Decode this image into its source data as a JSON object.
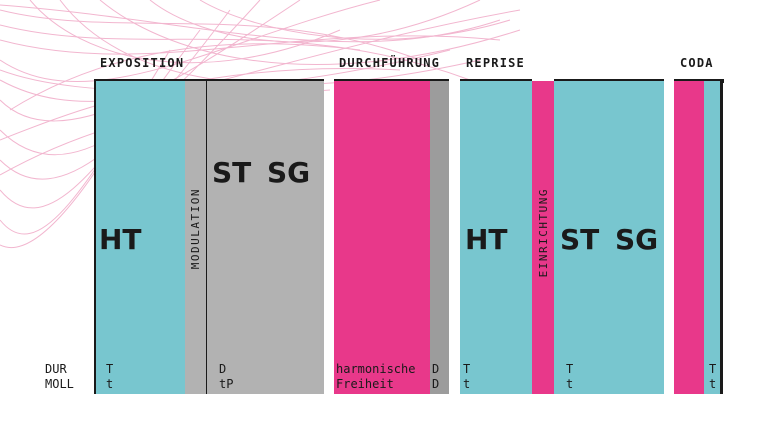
{
  "sections": {
    "exposition": "EXPOSITION",
    "durchfuehrung": "DURCHFÜHRUNG",
    "reprise": "REPRISE",
    "coda": "CODA"
  },
  "blocks": {
    "ht1": "HT",
    "modulation": "MODULATION",
    "stsg1": "ST SG",
    "ht2": "HT",
    "einrichtung": "EINRICHTUNG",
    "stsg2": "ST SG"
  },
  "rows": {
    "dur_label": "DUR",
    "moll_label": "MOLL",
    "exp_ht_dur": "T",
    "exp_ht_moll": "t",
    "exp_sg_dur": "D",
    "exp_sg_moll": "tP",
    "df_dur": "harmonische",
    "df_moll": "Freiheit",
    "df_end_dur": "D",
    "df_end_moll": "D",
    "rep_ht_dur": "T",
    "rep_ht_moll": "t",
    "rep_sg_dur": "T",
    "rep_sg_moll": "t",
    "coda_dur": "T",
    "coda_moll": "t"
  },
  "colors": {
    "teal": "#78c6cf",
    "gray": "#b2b2b2",
    "dark_gray": "#9c9c9c",
    "pink": "#e8388a",
    "line": "#1a1a1a"
  }
}
